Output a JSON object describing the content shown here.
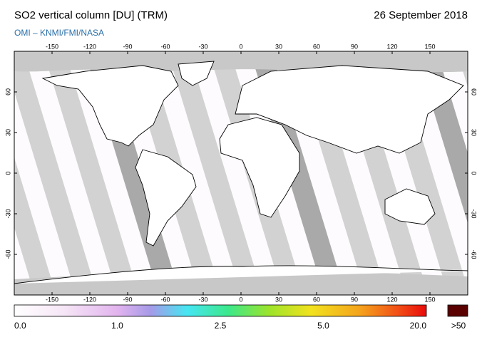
{
  "header": {
    "title": "SO2 vertical column [DU] (TRM)",
    "date": "26 September 2018",
    "source": "OMI  –  KNMI/FMI/NASA"
  },
  "map": {
    "lon_range": [
      -180,
      180
    ],
    "lat_range": [
      -90,
      90
    ],
    "lon_ticks": [
      -150,
      -120,
      -90,
      -60,
      -30,
      0,
      30,
      60,
      90,
      120,
      150
    ],
    "lat_ticks": [
      60,
      30,
      0,
      -30,
      -60
    ]
  },
  "colorbar": {
    "labels": [
      "0.0",
      "1.0",
      "2.5",
      "5.0",
      "20.0"
    ],
    "overflow_label": ">50"
  }
}
